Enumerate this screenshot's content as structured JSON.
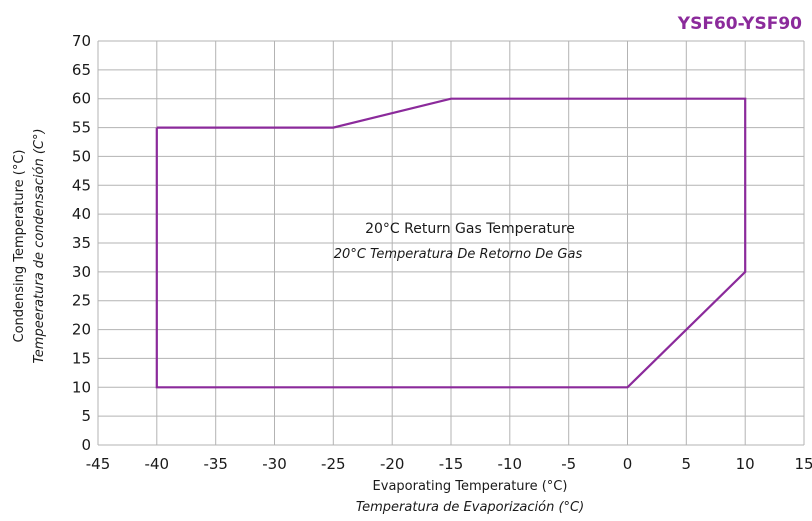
{
  "chart_data": {
    "type": "line",
    "title": "YSF60-YSF90",
    "xlabel": "Evaporating Temperature (°C)",
    "xlabel_es": "Temperatura de Evaporización (°C)",
    "ylabel": "Condensing Temperature (°C)",
    "ylabel_es": "Tempeeratura de condensación (C°)",
    "xlim": [
      -45,
      15
    ],
    "ylim": [
      0,
      70
    ],
    "xticks": [
      -45,
      -40,
      -35,
      -30,
      -25,
      -20,
      -15,
      -10,
      -5,
      0,
      5,
      10,
      15
    ],
    "yticks": [
      0,
      5,
      10,
      15,
      20,
      25,
      30,
      35,
      40,
      45,
      50,
      55,
      60,
      65,
      70
    ],
    "grid": true,
    "annotation": "20°C Return Gas Temperature",
    "annotation_es": "20°C Temperatura De Retorno De Gas",
    "series": [
      {
        "x": [
          -40,
          -25,
          -15,
          10,
          10,
          0,
          -40,
          -40
        ],
        "y": [
          55,
          55,
          60,
          60,
          30,
          10,
          10,
          55
        ]
      }
    ]
  },
  "colors": {
    "envelope": "#8b2a9b",
    "title": "#8b2a9b",
    "grid": "#b3b3b3"
  }
}
